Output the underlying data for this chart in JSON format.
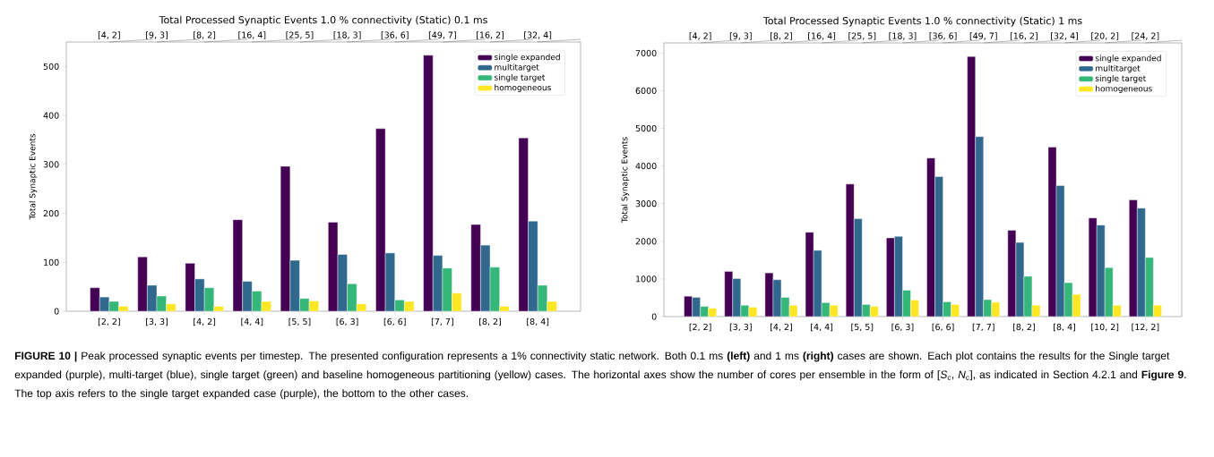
{
  "chart_data": [
    {
      "type": "bar",
      "title": "Total Processed Synaptic Events 1.0 % connectivity (Static) 0.1 ms",
      "ylabel": "Total Synaptic Events",
      "categories": [
        "[2, 2]",
        "[3, 3]",
        "[4, 2]",
        "[4, 4]",
        "[5, 5]",
        "[6, 3]",
        "[6, 6]",
        "[7, 7]",
        "[8, 2]",
        "[8, 4]"
      ],
      "series": [
        {
          "name": "single expanded",
          "color": "#440154",
          "values": [
            48,
            111,
            98,
            187,
            296,
            182,
            373,
            523,
            177,
            354
          ]
        },
        {
          "name": "multitarget",
          "color": "#31688e",
          "values": [
            29,
            53,
            66,
            61,
            104,
            116,
            119,
            114,
            135,
            184
          ]
        },
        {
          "name": "single target",
          "color": "#35b779",
          "values": [
            20,
            31,
            48,
            41,
            26,
            56,
            23,
            88,
            90,
            53
          ]
        },
        {
          "name": "homogeneous",
          "color": "#fde725",
          "values": [
            10,
            15,
            10,
            20,
            21,
            15,
            20,
            37,
            10,
            20
          ]
        }
      ],
      "ylim": [
        0,
        550
      ],
      "yticks": [
        0,
        100,
        200,
        300,
        400,
        500
      ],
      "legend": "top right",
      "annotations": [
        "[4, 2]",
        "[9, 3]",
        "[8, 2]",
        "[16, 4]",
        "[25, 5]",
        "[18, 3]",
        "[36, 6]",
        "[49, 7]",
        "[16, 2]",
        "[32, 4]",
        "**FIGURE 10 |** Peak processed synaptic events per timestep. The presented configuration represents a 1% connectivity static network. Both 0.1 ms **(left)** and 1 ms **(right)** cases are shown. Each plot contains the results for the Single target expanded (purple), multi-target (blue), single target (green) and baseline homogeneous partitioning (yellow) cases. The horizontal axes show the number of cores per ensemble in the form of [*S*$_{c}$, *N*$_{c}$], as indicated in Section 4.2.1 and **Figure 9**. The top axis refers to the single target expanded case (purple), the bottom to the other cases."
      ]
    },
    {
      "type": "bar",
      "title": "Total Processed Synaptic Events 1.0 % connectivity (Static) 1 ms",
      "ylabel": "Total Synaptic Events",
      "categories": [
        "[2, 2]",
        "[3, 3]",
        "[4, 2]",
        "[4, 4]",
        "[5, 5]",
        "[6, 3]",
        "[6, 6]",
        "[7, 7]",
        "[8, 2]",
        "[8, 4]",
        "[10, 2]",
        "[12, 2]"
      ],
      "series": [
        {
          "name": "single expanded",
          "color": "#440154",
          "values": [
            540,
            1200,
            1160,
            2240,
            3520,
            2090,
            4210,
            6910,
            2290,
            4500,
            2620,
            3100
          ]
        },
        {
          "name": "multitarget",
          "color": "#31688e",
          "values": [
            510,
            1010,
            980,
            1760,
            2600,
            2130,
            3720,
            4780,
            1970,
            3480,
            2430,
            2880
          ]
        },
        {
          "name": "single target",
          "color": "#35b779",
          "values": [
            270,
            300,
            510,
            370,
            320,
            700,
            390,
            450,
            1070,
            900,
            1300,
            1570
          ]
        },
        {
          "name": "homogeneous",
          "color": "#fde725",
          "values": [
            220,
            250,
            300,
            300,
            270,
            440,
            320,
            380,
            300,
            590,
            300,
            300
          ]
        }
      ],
      "ylim": [
        0,
        7270
      ],
      "yticks": [
        0,
        1000,
        2000,
        3000,
        4000,
        5000,
        6000,
        7000
      ],
      "legend": "top right",
      "annotations": [
        "[4, 2]",
        "[9, 3]",
        "[8, 2]",
        "[16, 4]",
        "[25, 5]",
        "[18, 3]",
        "[36, 6]",
        "[49, 7]",
        "[16, 2]",
        "[32, 4]",
        "[20, 2]",
        "[24, 2]"
      ]
    }
  ]
}
